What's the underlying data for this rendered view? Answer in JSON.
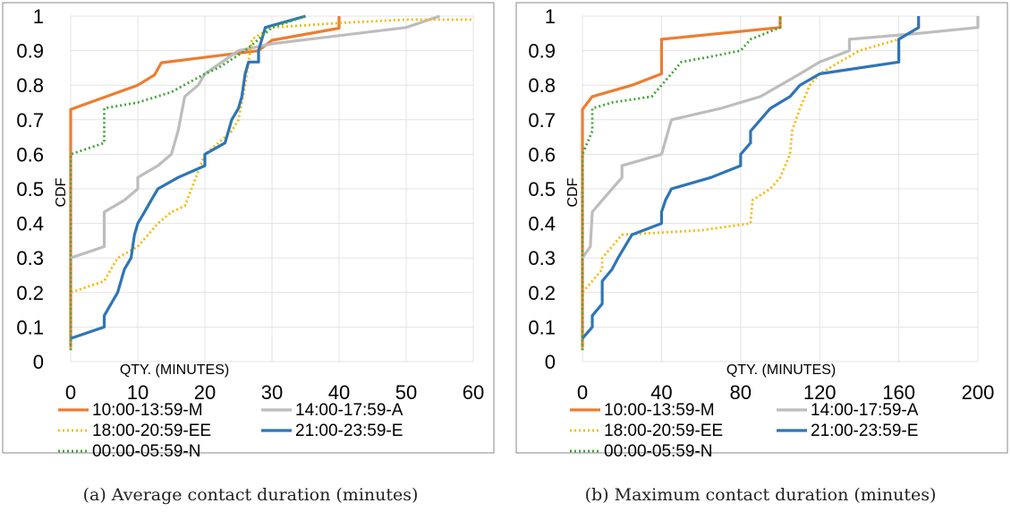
{
  "series_styles": [
    {
      "name": "10:00-13:59-M",
      "color": "#ED7D31",
      "dash": "solid"
    },
    {
      "name": "14:00-17:59-A",
      "color": "#BDBDBD",
      "dash": "solid"
    },
    {
      "name": "18:00-20:59-EE",
      "color": "#F5B800",
      "dash": "dotted"
    },
    {
      "name": "21:00-23:59-E",
      "color": "#2E75B6",
      "dash": "solid"
    },
    {
      "name": "00:00-05:59-N",
      "color": "#3FA535",
      "dash": "dotted"
    }
  ],
  "chart_data": [
    {
      "type": "line",
      "caption": "(a) Average contact duration (minutes)",
      "xlabel": "QTY. (MINUTES)",
      "ylabel": "CDF",
      "xlim": [
        0,
        60
      ],
      "ylim": [
        0,
        1
      ],
      "xticks": [
        0,
        10,
        20,
        30,
        40,
        50,
        60
      ],
      "yticks": [
        0,
        0.1,
        0.2,
        0.3,
        0.4,
        0.5,
        0.6,
        0.7,
        0.8,
        0.9,
        1
      ],
      "grid": true,
      "legend_position": "bottom",
      "series": [
        {
          "name": "10:00-13:59-M",
          "points": [
            [
              0,
              0.04
            ],
            [
              0,
              0.73
            ],
            [
              10,
              0.8
            ],
            [
              12.5,
              0.83
            ],
            [
              13.5,
              0.865
            ],
            [
              28,
              0.9
            ],
            [
              30,
              0.93
            ],
            [
              40,
              0.965
            ],
            [
              40,
              1.0
            ]
          ]
        },
        {
          "name": "14:00-17:59-A",
          "points": [
            [
              0,
              0.3
            ],
            [
              5,
              0.333
            ],
            [
              5,
              0.433
            ],
            [
              8,
              0.467
            ],
            [
              10,
              0.5
            ],
            [
              10,
              0.533
            ],
            [
              13,
              0.567
            ],
            [
              15,
              0.6
            ],
            [
              16,
              0.667
            ],
            [
              17,
              0.767
            ],
            [
              19,
              0.8
            ],
            [
              20,
              0.833
            ],
            [
              25,
              0.9
            ],
            [
              30,
              0.92
            ],
            [
              50,
              0.967
            ],
            [
              55,
              1.0
            ]
          ]
        },
        {
          "name": "18:00-20:59-EE",
          "points": [
            [
              0,
              0.033
            ],
            [
              0,
              0.2
            ],
            [
              5,
              0.233
            ],
            [
              6,
              0.267
            ],
            [
              7,
              0.3
            ],
            [
              10,
              0.333
            ],
            [
              13,
              0.4
            ],
            [
              15,
              0.433
            ],
            [
              17,
              0.45
            ],
            [
              18,
              0.5
            ],
            [
              20,
              0.6
            ],
            [
              22,
              0.633
            ],
            [
              24,
              0.667
            ],
            [
              25,
              0.7
            ],
            [
              26,
              0.8
            ],
            [
              26.5,
              0.867
            ],
            [
              27,
              0.933
            ],
            [
              30,
              0.967
            ],
            [
              40,
              0.98
            ],
            [
              50,
              0.99
            ],
            [
              60,
              0.99
            ]
          ]
        },
        {
          "name": "21:00-23:59-E",
          "points": [
            [
              0,
              0.067
            ],
            [
              5,
              0.1
            ],
            [
              5,
              0.133
            ],
            [
              7,
              0.2
            ],
            [
              8,
              0.267
            ],
            [
              9,
              0.3
            ],
            [
              9.5,
              0.367
            ],
            [
              10,
              0.4
            ],
            [
              11,
              0.433
            ],
            [
              12,
              0.467
            ],
            [
              13,
              0.5
            ],
            [
              16,
              0.533
            ],
            [
              20,
              0.567
            ],
            [
              20,
              0.6
            ],
            [
              23,
              0.633
            ],
            [
              24,
              0.7
            ],
            [
              25,
              0.733
            ],
            [
              25.5,
              0.767
            ],
            [
              26,
              0.833
            ],
            [
              26.5,
              0.867
            ],
            [
              28,
              0.867
            ],
            [
              28,
              0.9
            ],
            [
              29,
              0.967
            ],
            [
              35,
              1.0
            ]
          ]
        },
        {
          "name": "00:00-05:59-N",
          "points": [
            [
              0,
              0.033
            ],
            [
              0,
              0.6
            ],
            [
              5,
              0.633
            ],
            [
              5,
              0.733
            ],
            [
              10,
              0.75
            ],
            [
              15,
              0.78
            ],
            [
              20,
              0.833
            ],
            [
              22,
              0.85
            ],
            [
              26,
              0.9
            ],
            [
              28,
              0.933
            ],
            [
              30,
              0.967
            ],
            [
              35,
              1.0
            ]
          ]
        }
      ]
    },
    {
      "type": "line",
      "caption": "(b) Maximum contact duration (minutes)",
      "xlabel": "QTY. (MINUTES)",
      "ylabel": "CDF",
      "xlim": [
        0,
        200
      ],
      "ylim": [
        0,
        1
      ],
      "xticks": [
        0,
        40,
        80,
        120,
        160,
        200
      ],
      "yticks": [
        0,
        0.1,
        0.2,
        0.3,
        0.4,
        0.5,
        0.6,
        0.7,
        0.8,
        0.9,
        1
      ],
      "grid": true,
      "legend_position": "bottom",
      "series": [
        {
          "name": "10:00-13:59-M",
          "points": [
            [
              0,
              0.04
            ],
            [
              0,
              0.73
            ],
            [
              5,
              0.767
            ],
            [
              25,
              0.8
            ],
            [
              40,
              0.833
            ],
            [
              40,
              0.933
            ],
            [
              100,
              0.967
            ],
            [
              100,
              1.0
            ]
          ]
        },
        {
          "name": "14:00-17:59-A",
          "points": [
            [
              0,
              0.3
            ],
            [
              4,
              0.333
            ],
            [
              5,
              0.433
            ],
            [
              10,
              0.467
            ],
            [
              20,
              0.533
            ],
            [
              20,
              0.567
            ],
            [
              40,
              0.6
            ],
            [
              45,
              0.7
            ],
            [
              70,
              0.733
            ],
            [
              90,
              0.767
            ],
            [
              100,
              0.8
            ],
            [
              110,
              0.833
            ],
            [
              120,
              0.867
            ],
            [
              135,
              0.9
            ],
            [
              135,
              0.933
            ],
            [
              170,
              0.95
            ],
            [
              200,
              0.967
            ],
            [
              200,
              1.0
            ]
          ]
        },
        {
          "name": "18:00-20:59-EE",
          "points": [
            [
              0,
              0.033
            ],
            [
              0,
              0.2
            ],
            [
              5,
              0.233
            ],
            [
              10,
              0.267
            ],
            [
              10,
              0.3
            ],
            [
              15,
              0.333
            ],
            [
              20,
              0.367
            ],
            [
              60,
              0.38
            ],
            [
              85,
              0.4
            ],
            [
              86,
              0.467
            ],
            [
              95,
              0.5
            ],
            [
              100,
              0.533
            ],
            [
              105,
              0.6
            ],
            [
              106,
              0.667
            ],
            [
              110,
              0.733
            ],
            [
              115,
              0.8
            ],
            [
              120,
              0.833
            ],
            [
              130,
              0.867
            ],
            [
              140,
              0.9
            ],
            [
              160,
              0.933
            ],
            [
              170,
              0.967
            ],
            [
              170,
              1.0
            ]
          ]
        },
        {
          "name": "21:00-23:59-E",
          "points": [
            [
              0,
              0.067
            ],
            [
              5,
              0.1
            ],
            [
              5,
              0.133
            ],
            [
              10,
              0.167
            ],
            [
              10,
              0.233
            ],
            [
              15,
              0.267
            ],
            [
              18,
              0.3
            ],
            [
              25,
              0.367
            ],
            [
              40,
              0.4
            ],
            [
              40,
              0.433
            ],
            [
              42,
              0.467
            ],
            [
              45,
              0.5
            ],
            [
              65,
              0.533
            ],
            [
              80,
              0.567
            ],
            [
              80,
              0.6
            ],
            [
              85,
              0.633
            ],
            [
              85,
              0.667
            ],
            [
              95,
              0.733
            ],
            [
              105,
              0.767
            ],
            [
              110,
              0.8
            ],
            [
              120,
              0.833
            ],
            [
              160,
              0.867
            ],
            [
              160,
              0.933
            ],
            [
              170,
              0.967
            ],
            [
              170,
              1.0
            ]
          ]
        },
        {
          "name": "00:00-05:59-N",
          "points": [
            [
              0,
              0.033
            ],
            [
              0,
              0.6
            ],
            [
              5,
              0.667
            ],
            [
              5,
              0.733
            ],
            [
              15,
              0.75
            ],
            [
              35,
              0.767
            ],
            [
              40,
              0.8
            ],
            [
              45,
              0.833
            ],
            [
              50,
              0.867
            ],
            [
              65,
              0.883
            ],
            [
              80,
              0.9
            ],
            [
              85,
              0.933
            ],
            [
              100,
              0.967
            ],
            [
              100,
              1.0
            ]
          ]
        }
      ]
    }
  ]
}
